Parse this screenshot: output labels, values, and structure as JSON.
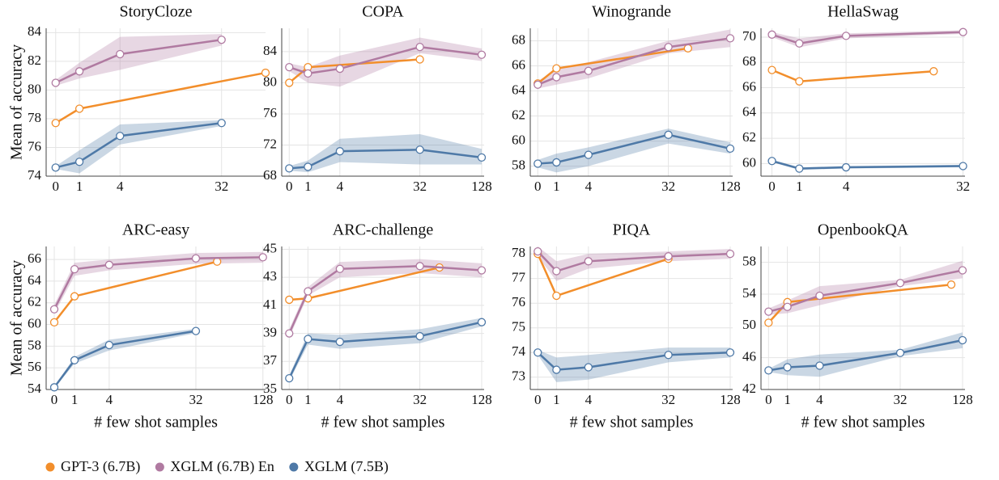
{
  "chart_data": [
    {
      "type": "line",
      "title": "StoryCloze",
      "ylabel": "Mean of accuracy",
      "xlim": [
        -0.3,
        70
      ],
      "xticks": [
        0,
        1,
        4,
        32
      ],
      "ylim": [
        74,
        84.3
      ],
      "yticks": [
        74,
        76,
        78,
        80,
        82,
        84
      ],
      "grid": true,
      "series": [
        {
          "name": "GPT-3 (6.7B)",
          "color": "#f28e2b",
          "x": [
            0,
            1,
            70
          ],
          "values": [
            77.7,
            78.7,
            81.2
          ]
        },
        {
          "name": "XGLM (6.7B) En",
          "color": "#b07aa1",
          "x": [
            0,
            1,
            4,
            32
          ],
          "values": [
            80.5,
            81.3,
            82.5,
            83.5
          ],
          "lower": [
            80.3,
            80.8,
            81.4,
            83.1
          ],
          "upper": [
            80.7,
            81.9,
            83.7,
            83.9
          ]
        },
        {
          "name": "XGLM (7.5B)",
          "color": "#4e79a7",
          "x": [
            0,
            1,
            4,
            32
          ],
          "values": [
            74.6,
            75.0,
            76.8,
            77.7
          ],
          "lower": [
            74.5,
            74.2,
            76.2,
            77.5
          ],
          "upper": [
            74.7,
            75.8,
            77.6,
            77.9
          ]
        }
      ]
    },
    {
      "type": "line",
      "title": "COPA",
      "xlim": [
        -0.3,
        135
      ],
      "xticks": [
        0,
        1,
        4,
        32,
        128
      ],
      "ylim": [
        68,
        87
      ],
      "yticks": [
        68,
        72,
        76,
        80,
        84
      ],
      "grid": true,
      "series": [
        {
          "name": "GPT-3 (6.7B)",
          "color": "#f28e2b",
          "x": [
            0,
            1,
            32
          ],
          "values": [
            80,
            82,
            83
          ]
        },
        {
          "name": "XGLM (6.7B) En",
          "color": "#b07aa1",
          "x": [
            0,
            1,
            4,
            32,
            128
          ],
          "values": [
            82,
            81.2,
            81.8,
            84.6,
            83.6
          ],
          "lower": [
            81.5,
            80,
            79.5,
            83.8,
            82.8
          ],
          "upper": [
            82.5,
            82,
            83.5,
            85.8,
            84.4
          ]
        },
        {
          "name": "XGLM (7.5B)",
          "color": "#4e79a7",
          "x": [
            0,
            1,
            4,
            32,
            128
          ],
          "values": [
            69,
            69.2,
            71.2,
            71.4,
            70.4
          ],
          "lower": [
            68.7,
            68.5,
            69.8,
            69.5,
            69.5
          ],
          "upper": [
            69.3,
            70,
            72.8,
            73.4,
            71.5
          ]
        }
      ]
    },
    {
      "type": "line",
      "title": "Winogrande",
      "xlim": [
        -0.3,
        135
      ],
      "xticks": [
        0,
        1,
        4,
        32,
        128
      ],
      "ylim": [
        57.2,
        69
      ],
      "yticks": [
        58,
        60,
        62,
        64,
        66,
        68
      ],
      "grid": true,
      "series": [
        {
          "name": "GPT-3 (6.7B)",
          "color": "#f28e2b",
          "x": [
            0,
            1,
            50
          ],
          "values": [
            64.6,
            65.8,
            67.4
          ]
        },
        {
          "name": "XGLM (6.7B) En",
          "color": "#b07aa1",
          "x": [
            0,
            1,
            4,
            32,
            128
          ],
          "values": [
            64.5,
            65.1,
            65.6,
            67.5,
            68.2
          ],
          "lower": [
            64.2,
            64.5,
            65,
            67,
            67.5
          ],
          "upper": [
            64.8,
            65.7,
            66.3,
            68,
            68.9
          ]
        },
        {
          "name": "XGLM (7.5B)",
          "color": "#4e79a7",
          "x": [
            0,
            1,
            4,
            32,
            128
          ],
          "values": [
            58.2,
            58.3,
            58.9,
            60.5,
            59.4
          ],
          "lower": [
            57.9,
            57.5,
            58,
            59.8,
            59
          ],
          "upper": [
            58.5,
            59,
            59.5,
            61,
            59.9
          ]
        }
      ]
    },
    {
      "type": "line",
      "title": "HellaSwag",
      "xlim": [
        -0.3,
        33
      ],
      "xticks": [
        0,
        1,
        4,
        32
      ],
      "ylim": [
        59,
        70.7
      ],
      "yticks": [
        60,
        62,
        64,
        66,
        68,
        70
      ],
      "grid": true,
      "series": [
        {
          "name": "GPT-3 (6.7B)",
          "color": "#f28e2b",
          "x": [
            0,
            1,
            20
          ],
          "values": [
            67.4,
            66.5,
            67.3
          ]
        },
        {
          "name": "XGLM (6.7B) En",
          "color": "#b07aa1",
          "x": [
            0,
            1,
            4,
            32
          ],
          "values": [
            70.2,
            69.5,
            70.1,
            70.4
          ],
          "lower": [
            70,
            69.2,
            69.9,
            70.25
          ],
          "upper": [
            70.4,
            69.9,
            70.3,
            70.55
          ]
        },
        {
          "name": "XGLM (7.5B)",
          "color": "#4e79a7",
          "x": [
            0,
            1,
            4,
            32
          ],
          "values": [
            60.2,
            59.6,
            59.7,
            59.8
          ],
          "lower": [
            60.1,
            59.5,
            59.6,
            59.7
          ],
          "upper": [
            60.3,
            59.7,
            59.8,
            59.9
          ]
        }
      ]
    },
    {
      "type": "line",
      "title": "ARC-easy",
      "ylabel": "Mean of accuracy",
      "xlabel": "# few shot samples",
      "xlim": [
        -0.3,
        135
      ],
      "xticks": [
        0,
        1,
        4,
        32,
        128
      ],
      "ylim": [
        54,
        67.2
      ],
      "yticks": [
        54,
        56,
        58,
        60,
        62,
        64,
        66
      ],
      "grid": true,
      "series": [
        {
          "name": "GPT-3 (6.7B)",
          "color": "#f28e2b",
          "x": [
            0,
            1,
            50
          ],
          "values": [
            60.2,
            62.6,
            65.8
          ]
        },
        {
          "name": "XGLM (6.7B) En",
          "color": "#b07aa1",
          "x": [
            0,
            1,
            4,
            32,
            128
          ],
          "values": [
            61.4,
            65.1,
            65.5,
            66.1,
            66.2
          ],
          "lower": [
            61,
            64.5,
            65,
            65.6,
            65.7
          ],
          "upper": [
            61.8,
            65.7,
            66,
            66.6,
            66.7
          ]
        },
        {
          "name": "XGLM (7.5B)",
          "color": "#4e79a7",
          "x": [
            0,
            1,
            4,
            32
          ],
          "values": [
            54.2,
            56.7,
            58.1,
            59.4
          ],
          "lower": [
            54.1,
            56.4,
            57.6,
            59.2
          ],
          "upper": [
            54.3,
            57,
            58.6,
            59.6
          ]
        }
      ]
    },
    {
      "type": "line",
      "title": "ARC-challenge",
      "xlabel": "# few shot samples",
      "xlim": [
        -0.3,
        135
      ],
      "xticks": [
        0,
        1,
        4,
        32,
        128
      ],
      "ylim": [
        35,
        45.2
      ],
      "yticks": [
        35,
        37,
        39,
        41,
        43,
        45
      ],
      "grid": true,
      "series": [
        {
          "name": "GPT-3 (6.7B)",
          "color": "#f28e2b",
          "x": [
            0,
            1,
            50
          ],
          "values": [
            41.4,
            41.5,
            43.7
          ]
        },
        {
          "name": "XGLM (6.7B) En",
          "color": "#b07aa1",
          "x": [
            0,
            1,
            4,
            32,
            128
          ],
          "values": [
            39,
            42,
            43.6,
            43.8,
            43.5
          ],
          "lower": [
            38.7,
            41.7,
            43,
            43.3,
            43
          ],
          "upper": [
            39.3,
            42.3,
            44.1,
            44.3,
            44
          ]
        },
        {
          "name": "XGLM (7.5B)",
          "color": "#4e79a7",
          "x": [
            0,
            1,
            4,
            32,
            128
          ],
          "values": [
            35.8,
            38.6,
            38.4,
            38.8,
            39.8
          ],
          "lower": [
            35.6,
            38.2,
            37.9,
            38.3,
            39.5
          ],
          "upper": [
            36,
            39,
            38.9,
            39.3,
            40.1
          ]
        }
      ]
    },
    {
      "type": "line",
      "title": "PIQA",
      "xlabel": "# few shot samples",
      "xlim": [
        -0.3,
        135
      ],
      "xticks": [
        0,
        1,
        4,
        32,
        128
      ],
      "ylim": [
        72.5,
        78.3
      ],
      "yticks": [
        73,
        74,
        75,
        76,
        77,
        78
      ],
      "grid": true,
      "series": [
        {
          "name": "GPT-3 (6.7B)",
          "color": "#f28e2b",
          "x": [
            0,
            1,
            32
          ],
          "values": [
            78.0,
            76.3,
            77.8
          ]
        },
        {
          "name": "XGLM (6.7B) En",
          "color": "#b07aa1",
          "x": [
            0,
            1,
            4,
            32,
            128
          ],
          "values": [
            78.1,
            77.3,
            77.7,
            77.9,
            78.0
          ],
          "lower": [
            77.9,
            76.9,
            77.4,
            77.7,
            77.8
          ],
          "upper": [
            78.3,
            77.7,
            78,
            78.1,
            78.2
          ]
        },
        {
          "name": "XGLM (7.5B)",
          "color": "#4e79a7",
          "x": [
            0,
            1,
            4,
            32,
            128
          ],
          "values": [
            74.0,
            73.3,
            73.4,
            73.9,
            74.0
          ],
          "lower": [
            73.9,
            72.8,
            72.9,
            73.6,
            73.8
          ],
          "upper": [
            74.1,
            73.8,
            73.9,
            74.2,
            74.2
          ]
        }
      ]
    },
    {
      "type": "line",
      "title": "OpenbookQA",
      "xlabel": "# few shot samples",
      "xlim": [
        -0.3,
        135
      ],
      "xticks": [
        0,
        1,
        4,
        32,
        128
      ],
      "ylim": [
        42,
        60
      ],
      "yticks": [
        42,
        46,
        50,
        54,
        58
      ],
      "grid": true,
      "series": [
        {
          "name": "GPT-3 (6.7B)",
          "color": "#f28e2b",
          "x": [
            0,
            1,
            100
          ],
          "values": [
            50.4,
            53,
            55.2
          ]
        },
        {
          "name": "XGLM (6.7B) En",
          "color": "#b07aa1",
          "x": [
            0,
            1,
            4,
            32,
            128
          ],
          "values": [
            51.8,
            52.4,
            53.8,
            55.4,
            57
          ],
          "lower": [
            51.4,
            51.6,
            52.6,
            55,
            56
          ],
          "upper": [
            52.2,
            53.2,
            55,
            55.8,
            58.2
          ]
        },
        {
          "name": "XGLM (7.5B)",
          "color": "#4e79a7",
          "x": [
            0,
            1,
            4,
            32,
            128
          ],
          "values": [
            44.4,
            44.8,
            45,
            46.6,
            48.2
          ],
          "lower": [
            44.2,
            43.8,
            43.6,
            46.2,
            47.2
          ],
          "upper": [
            44.6,
            45.8,
            46.4,
            47,
            49.2
          ]
        }
      ]
    }
  ]
}
